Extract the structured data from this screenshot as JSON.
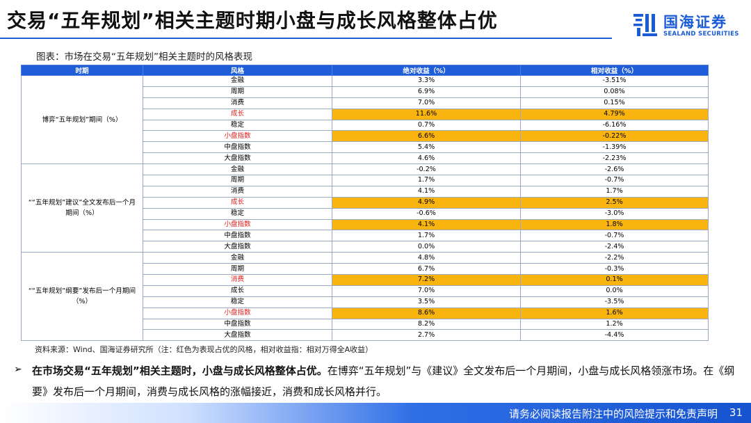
{
  "header": {
    "title": "交易“五年规划”相关主题时期小盘与成长风格整体占优",
    "logo_cn": "国海证券",
    "logo_en": "SEALAND SECURITIES"
  },
  "caption": "图表：市场在交易“五年规划”相关主题时的风格表现",
  "colors": {
    "header_blue": "#1f5ed8",
    "highlight": "#f9b410",
    "highlight_text": "#e0201e"
  },
  "table": {
    "columns": [
      "时期",
      "风格",
      "绝对收益（%）",
      "相对收益（%）"
    ],
    "groups": [
      {
        "period": "博弈“五年规划”期间（%）",
        "rows": [
          {
            "style": "金融",
            "abs": "3.3%",
            "rel": "-3.51%",
            "hl": false
          },
          {
            "style": "周期",
            "abs": "6.9%",
            "rel": "0.08%",
            "hl": false
          },
          {
            "style": "消费",
            "abs": "7.0%",
            "rel": "0.15%",
            "hl": false
          },
          {
            "style": "成长",
            "abs": "11.6%",
            "rel": "4.79%",
            "hl": true
          },
          {
            "style": "稳定",
            "abs": "0.7%",
            "rel": "-6.16%",
            "hl": false
          },
          {
            "style": "小盘指数",
            "abs": "6.6%",
            "rel": "-0.22%",
            "hl": true
          },
          {
            "style": "中盘指数",
            "abs": "5.4%",
            "rel": "-1.39%",
            "hl": false
          },
          {
            "style": "大盘指数",
            "abs": "4.6%",
            "rel": "-2.23%",
            "hl": false
          }
        ]
      },
      {
        "period": "““五年规划”建议”全文发布后一个月期间（%）",
        "rows": [
          {
            "style": "金融",
            "abs": "-0.2%",
            "rel": "-2.6%",
            "hl": false
          },
          {
            "style": "周期",
            "abs": "1.7%",
            "rel": "-0.7%",
            "hl": false
          },
          {
            "style": "消费",
            "abs": "4.1%",
            "rel": "1.7%",
            "hl": false
          },
          {
            "style": "成长",
            "abs": "4.9%",
            "rel": "2.5%",
            "hl": true
          },
          {
            "style": "稳定",
            "abs": "-0.6%",
            "rel": "-3.0%",
            "hl": false
          },
          {
            "style": "小盘指数",
            "abs": "4.1%",
            "rel": "1.8%",
            "hl": true
          },
          {
            "style": "中盘指数",
            "abs": "1.7%",
            "rel": "-0.7%",
            "hl": false
          },
          {
            "style": "大盘指数",
            "abs": "0.0%",
            "rel": "-2.4%",
            "hl": false
          }
        ]
      },
      {
        "period": "““五年规划”纲要”发布后一个月期间（%）",
        "rows": [
          {
            "style": "金融",
            "abs": "4.8%",
            "rel": "-2.2%",
            "hl": false
          },
          {
            "style": "周期",
            "abs": "6.7%",
            "rel": "-0.3%",
            "hl": false
          },
          {
            "style": "消费",
            "abs": "7.2%",
            "rel": "0.1%",
            "hl": true
          },
          {
            "style": "成长",
            "abs": "7.0%",
            "rel": "0.0%",
            "hl": false
          },
          {
            "style": "稳定",
            "abs": "3.5%",
            "rel": "-3.5%",
            "hl": false
          },
          {
            "style": "小盘指数",
            "abs": "8.6%",
            "rel": "1.6%",
            "hl": true
          },
          {
            "style": "中盘指数",
            "abs": "8.2%",
            "rel": "1.2%",
            "hl": false
          },
          {
            "style": "大盘指数",
            "abs": "2.7%",
            "rel": "-4.4%",
            "hl": false
          }
        ]
      }
    ]
  },
  "source_note": "资料来源：Wind、国海证券研究所（注：红色为表现占优的风格，相对收益指：相对万得全A收益）",
  "summary": {
    "bold": "在市场交易“五年规划”相关主题时，小盘与成长风格整体占优。",
    "rest": "在博弈“五年规划”与《建议》全文发布后一个月期间，小盘与成长风格领涨市场。在《纲要》发布后一个月期间，消费与成长风格的涨幅接近，消费和成长风格并行。"
  },
  "footer": {
    "disclaimer": "请务必阅读报告附注中的风险提示和免责声明",
    "page": "31"
  }
}
